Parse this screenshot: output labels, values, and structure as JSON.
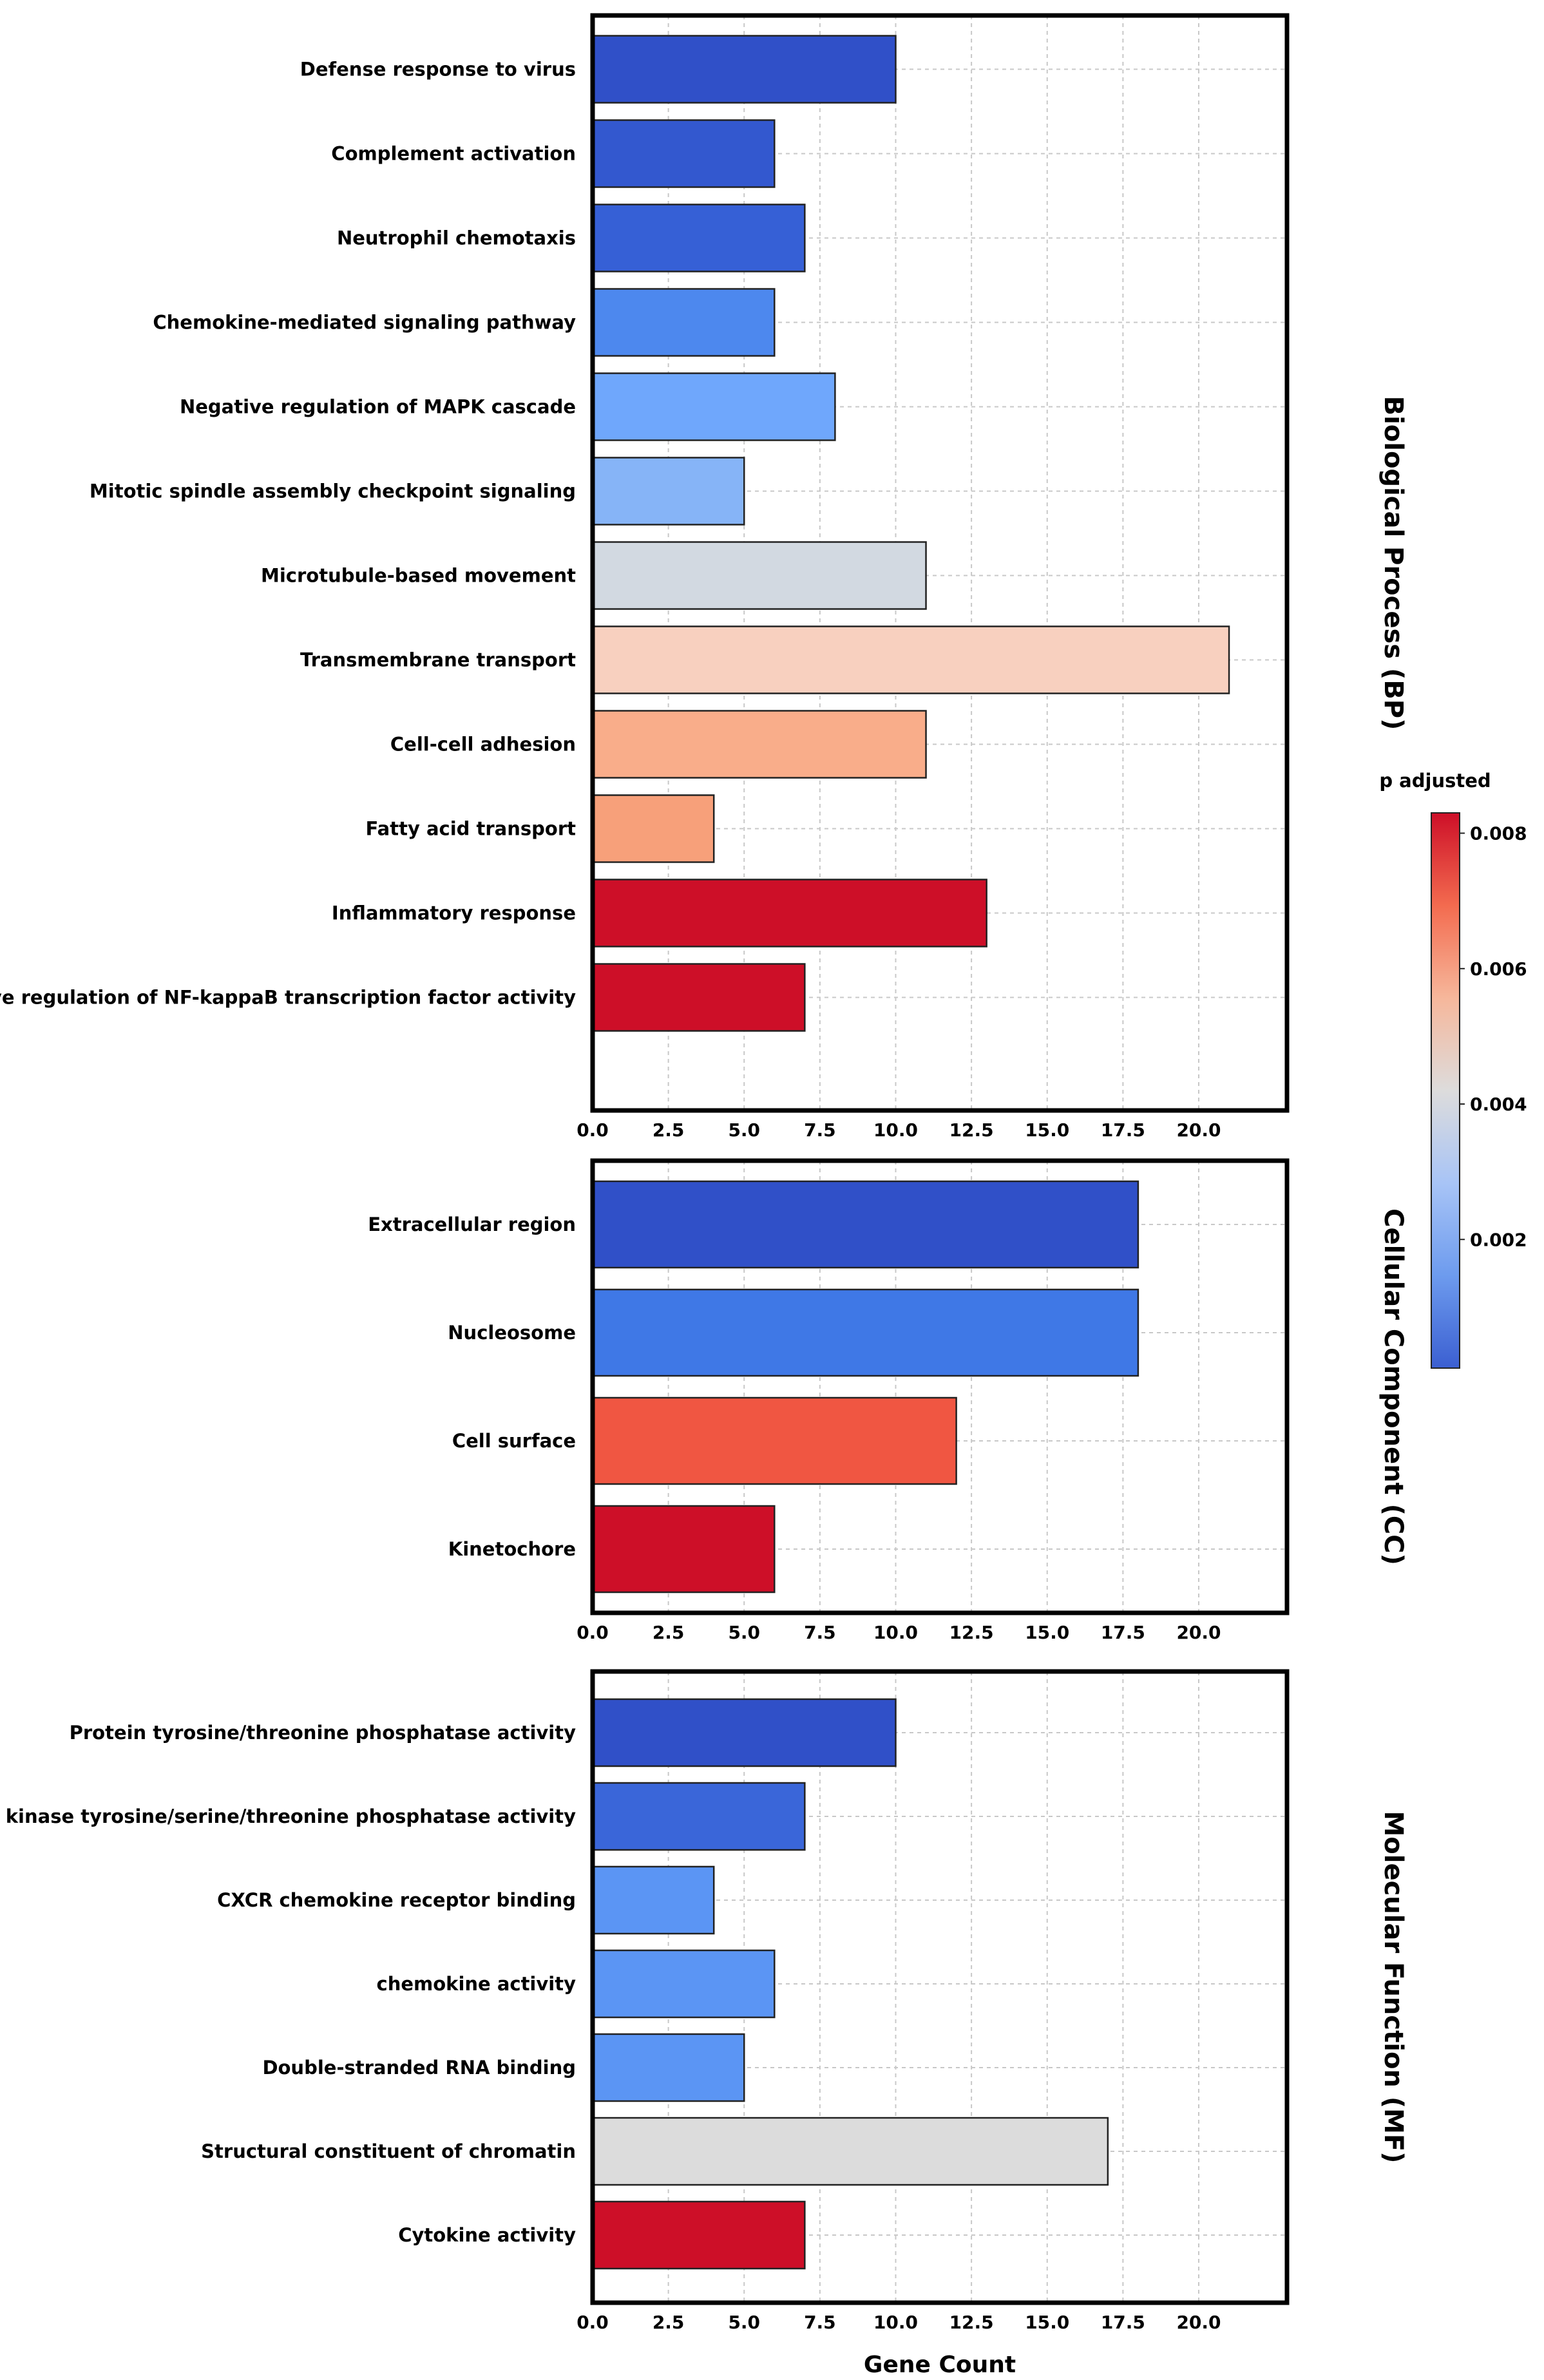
{
  "chart_data": [
    {
      "type": "bar",
      "orientation": "horizontal",
      "panel": "Biological Process (BP)",
      "categories": [
        "Defense response to virus",
        "Complement activation",
        "Neutrophil chemotaxis",
        "Chemokine-mediated signaling pathway",
        "Negative regulation of MAPK cascade",
        "Mitotic spindle assembly checkpoint signaling",
        "Microtubule-based movement",
        "Transmembrane transport",
        "Cell-cell adhesion",
        "Fatty acid transport",
        "Inflammatory response",
        "Positive regulation of NF-kappaB transcription factor activity"
      ],
      "values": [
        10,
        6,
        7,
        6,
        8,
        5,
        11,
        21,
        11,
        4,
        13,
        7
      ],
      "colors": [
        "#3050c8",
        "#3358cf",
        "#3660d6",
        "#4d88ee",
        "#6fa7fc",
        "#86b4f7",
        "#d2d9e1",
        "#f8d0bf",
        "#f9ad8a",
        "#f7a07a",
        "#cd0f28",
        "#cd0f28"
      ],
      "xlim": [
        0,
        23
      ],
      "xticks": [
        "0.0",
        "2.5",
        "5.0",
        "7.5",
        "10.0",
        "12.5",
        "15.0",
        "17.5",
        "20.0"
      ],
      "grid": true
    },
    {
      "type": "bar",
      "orientation": "horizontal",
      "panel": "Cellular Component (CC)",
      "categories": [
        "Extracellular region",
        "Nucleosome",
        "Cell surface",
        "Kinetochore"
      ],
      "values": [
        18,
        18,
        12,
        6
      ],
      "colors": [
        "#3050c8",
        "#3f78e6",
        "#f05642",
        "#cd0f28"
      ],
      "xlim": [
        0,
        23
      ],
      "xticks": [
        "0.0",
        "2.5",
        "5.0",
        "7.5",
        "10.0",
        "12.5",
        "15.0",
        "17.5",
        "20.0"
      ],
      "grid": true
    },
    {
      "type": "bar",
      "orientation": "horizontal",
      "panel": "Molecular Function (MF)",
      "categories": [
        "Protein tyrosine/threonine phosphatase activity",
        "MAP kinase tyrosine/serine/threonine phosphatase activity",
        "CXCR chemokine receptor binding",
        "chemokine activity",
        "Double-stranded RNA binding",
        "Structural constituent of chromatin",
        "Cytokine activity"
      ],
      "values": [
        10,
        7,
        4,
        6,
        5,
        17,
        7
      ],
      "colors": [
        "#3050c8",
        "#3a66d9",
        "#5b95f4",
        "#5b95f4",
        "#5b95f4",
        "#dcdcdc",
        "#cd0f28"
      ],
      "xlim": [
        0,
        23
      ],
      "xticks": [
        "0.0",
        "2.5",
        "5.0",
        "7.5",
        "10.0",
        "12.5",
        "15.0",
        "17.5",
        "20.0"
      ],
      "grid": true,
      "xlabel": "Gene Count"
    }
  ],
  "legend": {
    "title": "p adjusted",
    "ticks": [
      "0.008",
      "0.006",
      "0.004",
      "0.002"
    ],
    "tick_values": [
      0.008,
      0.006,
      0.004,
      0.002
    ],
    "range": [
      0.0001,
      0.0083
    ],
    "colormap": [
      "#cd0f28",
      "#f36b4f",
      "#f6b79b",
      "#dddcdc",
      "#a8c4f6",
      "#6d9bee",
      "#3b5fd1"
    ]
  }
}
